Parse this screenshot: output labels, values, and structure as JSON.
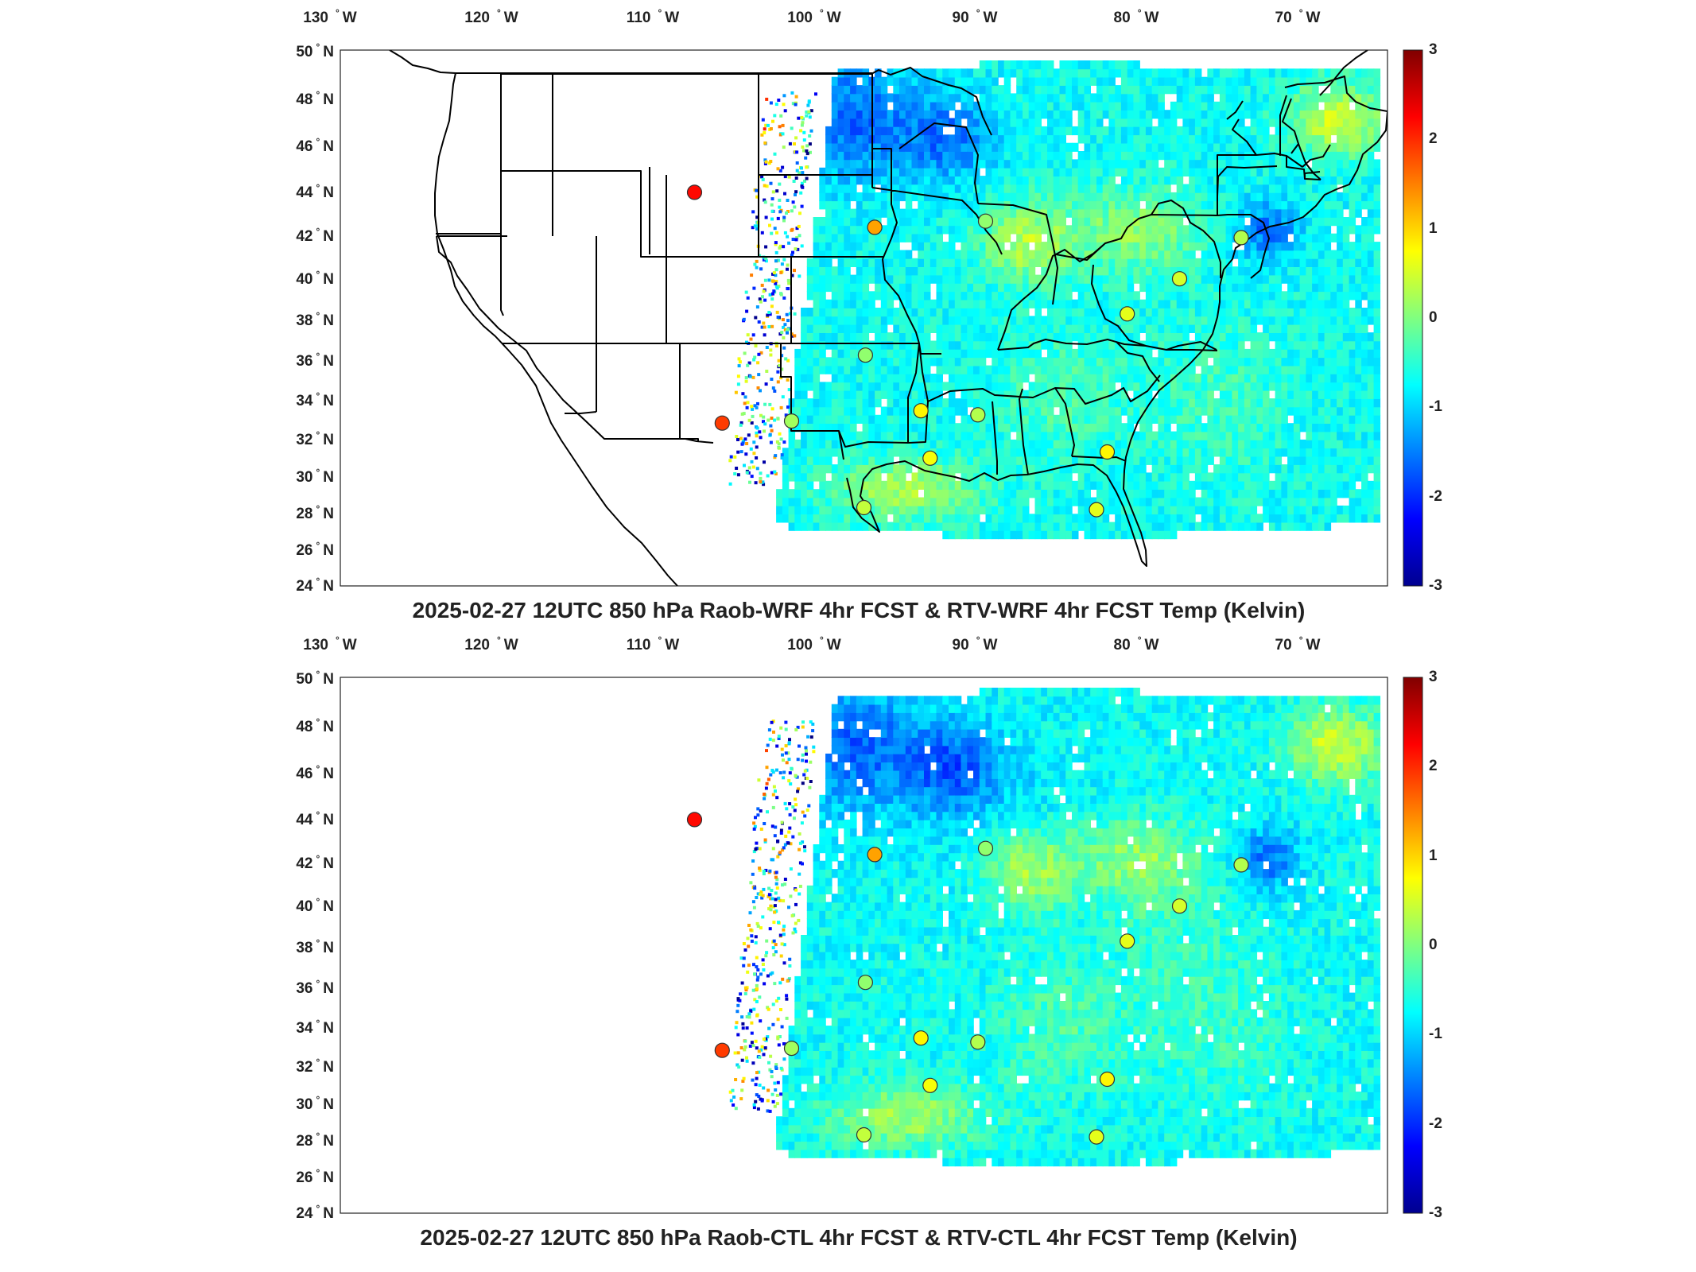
{
  "figure": {
    "panels": [
      {
        "title": "2025-02-27 12UTC 850 hPa Raob-WRF 4hr FCST & RTV-WRF 4hr FCST Temp (Kelvin)",
        "seed": 11
      },
      {
        "title": "2025-02-27 12UTC 850 hPa Raob-CTL 4hr FCST & RTV-CTL 4hr FCST Temp (Kelvin)",
        "seed": 29
      }
    ],
    "map_extent": {
      "lon_min": -131.5,
      "lon_max": -63.5,
      "lat_min": 24,
      "lat_max": 50
    },
    "lon_ticks": [
      {
        "value": -130,
        "label": "130",
        "hemi": "W"
      },
      {
        "value": -120,
        "label": "120",
        "hemi": "W"
      },
      {
        "value": -110,
        "label": "110",
        "hemi": "W"
      },
      {
        "value": -100,
        "label": "100",
        "hemi": "W"
      },
      {
        "value": -90,
        "label": "90",
        "hemi": "W"
      },
      {
        "value": -80,
        "label": "80",
        "hemi": "W"
      },
      {
        "value": -70,
        "label": "70",
        "hemi": "W"
      }
    ],
    "lat_ticks": [
      {
        "value": 50,
        "label": "50",
        "hemi": "N"
      },
      {
        "value": 48,
        "label": "48",
        "hemi": "N"
      },
      {
        "value": 46,
        "label": "46",
        "hemi": "N"
      },
      {
        "value": 44,
        "label": "44",
        "hemi": "N"
      },
      {
        "value": 42,
        "label": "42",
        "hemi": "N"
      },
      {
        "value": 40,
        "label": "40",
        "hemi": "N"
      },
      {
        "value": 38,
        "label": "38",
        "hemi": "N"
      },
      {
        "value": 36,
        "label": "36",
        "hemi": "N"
      },
      {
        "value": 34,
        "label": "34",
        "hemi": "N"
      },
      {
        "value": 32,
        "label": "32",
        "hemi": "N"
      },
      {
        "value": 30,
        "label": "30",
        "hemi": "N"
      },
      {
        "value": 28,
        "label": "28",
        "hemi": "N"
      },
      {
        "value": 26,
        "label": "26",
        "hemi": "N"
      },
      {
        "value": 24,
        "label": "24",
        "hemi": "N"
      }
    ],
    "colorbar": {
      "min": -3,
      "max": 3,
      "ticks": [
        {
          "value": 3,
          "label": "3"
        },
        {
          "value": 2,
          "label": "2"
        },
        {
          "value": 1,
          "label": "1"
        },
        {
          "value": 0,
          "label": "0"
        },
        {
          "value": -1,
          "label": "-1"
        },
        {
          "value": -2,
          "label": "-2"
        },
        {
          "value": -3,
          "label": "-3"
        }
      ],
      "colormap": "jet"
    },
    "raob_stations": [
      {
        "lon": -108.5,
        "lat": 43.1,
        "value": 2.2
      },
      {
        "lon": -96.8,
        "lat": 41.4,
        "value": 1.3
      },
      {
        "lon": -89.6,
        "lat": 41.7,
        "value": 0.1
      },
      {
        "lon": -106.7,
        "lat": 31.9,
        "value": 1.9
      },
      {
        "lon": -102.2,
        "lat": 32.0,
        "value": 0.2
      },
      {
        "lon": -97.4,
        "lat": 35.2,
        "value": 0.1
      },
      {
        "lon": -93.8,
        "lat": 32.5,
        "value": 0.8
      },
      {
        "lon": -90.1,
        "lat": 32.3,
        "value": 0.3
      },
      {
        "lon": -93.2,
        "lat": 30.2,
        "value": 0.7
      },
      {
        "lon": -97.5,
        "lat": 27.8,
        "value": 0.4
      },
      {
        "lon": -81.7,
        "lat": 30.5,
        "value": 0.8
      },
      {
        "lon": -82.4,
        "lat": 27.7,
        "value": 0.6
      },
      {
        "lon": -80.4,
        "lat": 37.2,
        "value": 0.6
      },
      {
        "lon": -77.0,
        "lat": 38.9,
        "value": 0.5
      },
      {
        "lon": -73.0,
        "lat": 40.9,
        "value": 0.3
      }
    ]
  }
}
